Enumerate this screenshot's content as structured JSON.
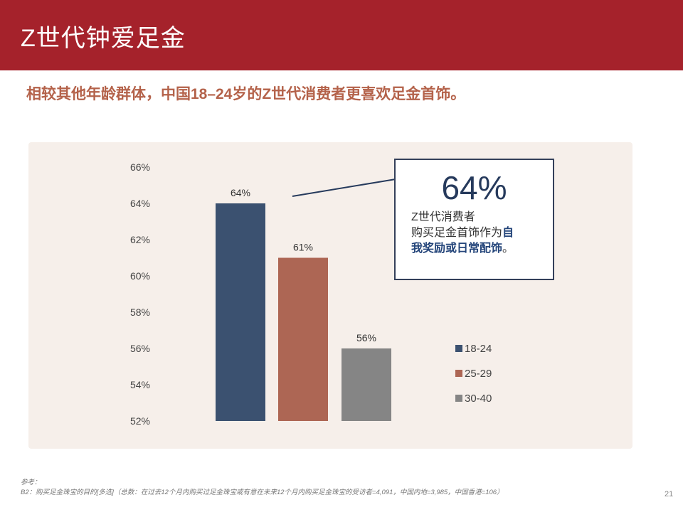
{
  "header": {
    "title": "Z世代钟爱足金"
  },
  "subtitle": "相较其他年龄群体，中国18–24岁的Z世代消费者更喜欢足金首饰。",
  "callout": {
    "value": "64%",
    "line1": "Z世代消费者",
    "line2_plain": "购买足金首饰作为",
    "line2_highlight": "自",
    "line3_highlight": "我奖励或日常配饰",
    "line3_plain": "。"
  },
  "footnote": {
    "label": "参考：",
    "text": "B2：购买足金珠宝的目的[多选]（总数：在过去12个月内购买过足金珠宝或有意在未来12个月内购买足金珠宝的受访者=4,091，中国内地=3,985，中国香港=106）"
  },
  "page_number": "21",
  "colors": {
    "header": "#a5222b",
    "panel": "#f6efea",
    "series_18_24": "#3b5170",
    "series_25_29": "#ad6654",
    "series_30_40": "#858585"
  },
  "chart_data": {
    "type": "bar",
    "categories": [
      "18-24",
      "25-29",
      "30-40"
    ],
    "values": [
      64,
      61,
      56
    ],
    "value_labels": [
      "64%",
      "61%",
      "56%"
    ],
    "ylim": [
      52,
      66
    ],
    "yticks": [
      66,
      64,
      62,
      60,
      58,
      56,
      54,
      52
    ],
    "ytick_labels": [
      "66%",
      "64%",
      "62%",
      "60%",
      "58%",
      "56%",
      "54%",
      "52%"
    ],
    "legend": [
      "18-24",
      "25-29",
      "30-40"
    ],
    "legend_position": "right",
    "grid": false
  }
}
